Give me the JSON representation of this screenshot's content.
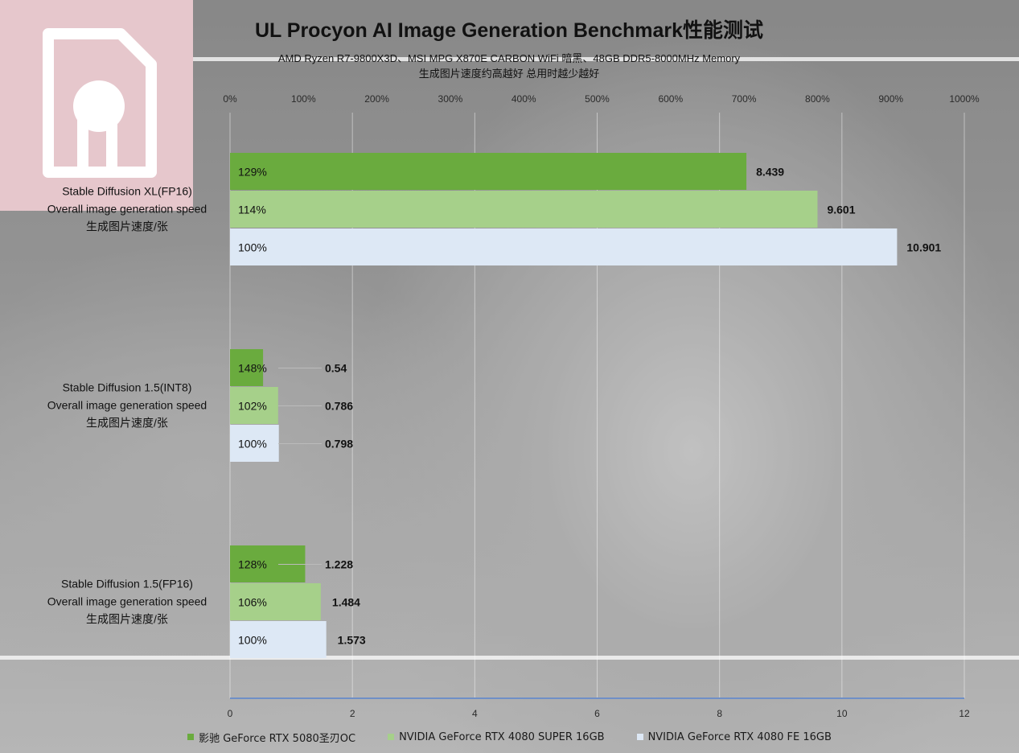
{
  "chart_data": {
    "type": "bar",
    "orientation": "horizontal",
    "title": "UL Procyon AI Image Generation Benchmark性能测试",
    "subtitle": "AMD Ryzen R7-9800X3D、MSI MPG X870E CARBON WiFi 暗黑、48GB DDR5-8000MHz Memory",
    "note": "生成图片速度约高越好 总用时越少越好",
    "categories": [
      [
        "Stable Diffusion XL(FP16)",
        "Overall image generation speed",
        "生成图片速度/张"
      ],
      [
        "Stable Diffusion 1.5(INT8)",
        "Overall image generation speed",
        "生成图片速度/张"
      ],
      [
        "Stable Diffusion 1.5(FP16)",
        "Overall image generation speed",
        "生成图片速度/张"
      ]
    ],
    "series": [
      {
        "name": "影驰 GeForce RTX 5080圣刃OC",
        "color": "#6aab3e",
        "values": [
          8.439,
          0.54,
          1.228
        ],
        "percent_labels": [
          "129%",
          "148%",
          "128%"
        ]
      },
      {
        "name": "NVIDIA GeForce RTX 4080 SUPER 16GB",
        "color": "#a6d08a",
        "values": [
          9.601,
          0.786,
          1.484
        ],
        "percent_labels": [
          "114%",
          "102%",
          "106%"
        ]
      },
      {
        "name": "NVIDIA GeForce RTX 4080 FE 16GB",
        "color": "#dde8f5",
        "values": [
          10.901,
          0.798,
          1.573
        ],
        "percent_labels": [
          "100%",
          "100%",
          "100%"
        ]
      }
    ],
    "value_labels": [
      [
        "8.439",
        "9.601",
        "10.901"
      ],
      [
        "0.54",
        "0.786",
        "0.798"
      ],
      [
        "1.228",
        "1.484",
        "1.573"
      ]
    ],
    "xlim": [
      0,
      12
    ],
    "x_ticks": [
      "0",
      "2",
      "4",
      "6",
      "8",
      "10",
      "12"
    ],
    "top_axis_ticks": [
      "0%",
      "100%",
      "200%",
      "300%",
      "400%",
      "500%",
      "600%",
      "700%",
      "800%",
      "900%",
      "1000%"
    ],
    "grid": true,
    "legend_position": "bottom"
  }
}
